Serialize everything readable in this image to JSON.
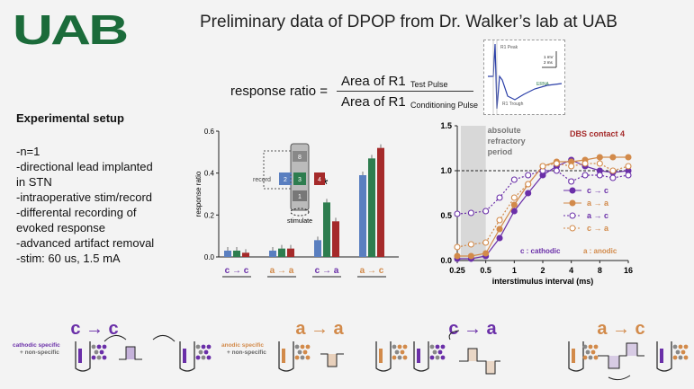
{
  "logo": {
    "text": "UAB"
  },
  "slide_title": "Preliminary data of DPOP from Dr. Walker’s lab at UAB",
  "formula": {
    "lhs": "response ratio =",
    "numerator": "Area of R1",
    "numerator_sub": "Test Pulse",
    "denominator": "Area of R1",
    "denominator_sub": "Conditioning Pulse"
  },
  "trace_inset": {
    "r1_peak": "R1 Peak",
    "r1_trough": "R1 Trough",
    "erna": "ERNA",
    "scale_amp": "1 mV",
    "scale_time": "2 ms"
  },
  "setup": {
    "title": "Experimental setup",
    "items": [
      "-n=1",
      "-directional lead implanted in STN",
      "-intraoperative stim/record",
      "-differental recording of evoked response",
      "-advanced artifact removal",
      "-stim: 60 us, 1.5 mA"
    ]
  },
  "colors": {
    "purple": "#6a2fa8",
    "green": "#2e7d4f",
    "red": "#a52a2a",
    "orange": "#d28a4a",
    "gray": "#bbbbbb"
  },
  "chart_data": [
    {
      "type": "bar",
      "ylabel": "response ratio",
      "ylim": [
        0,
        0.6
      ],
      "yticks": [
        "0.0",
        "0.2",
        "0.4",
        "0.6"
      ],
      "categories": [
        "c → c",
        "a → a",
        "c → a",
        "a → c"
      ],
      "series": [
        {
          "name": "2",
          "color": "#5a7fc0",
          "values": [
            0.03,
            0.03,
            0.08,
            0.39
          ]
        },
        {
          "name": "3",
          "color": "#2e7d4f",
          "values": [
            0.03,
            0.04,
            0.26,
            0.47
          ]
        },
        {
          "name": "4",
          "color": "#a52a2a",
          "values": [
            0.02,
            0.04,
            0.17,
            0.52
          ]
        }
      ],
      "annotations": {
        "star": "*",
        "record": "record",
        "stimulate": "stimulate",
        "contacts": [
          "8",
          "2",
          "3",
          "4",
          "1"
        ]
      }
    },
    {
      "type": "line",
      "title": "DBS contact 4",
      "xlabel": "interstimulus interval (ms)",
      "xscale": "log2",
      "xticks": [
        "0.25",
        "0.5",
        "1",
        "2",
        "4",
        "8",
        "16"
      ],
      "x": [
        0.25,
        0.35,
        0.5,
        0.7,
        1,
        1.4,
        2,
        2.8,
        4,
        5.6,
        8,
        11,
        16
      ],
      "ylim": [
        0,
        1.5
      ],
      "yticks": [
        "0.0",
        "0.5",
        "1.0",
        "1.5"
      ],
      "refractory_label": "absolute refractory period",
      "legend_position": "right",
      "series": [
        {
          "name": "c → c",
          "style": "solid-filled",
          "color": "#6a2fa8",
          "values": [
            0.02,
            0.02,
            0.05,
            0.25,
            0.55,
            0.75,
            0.95,
            1.05,
            1.12,
            1.05,
            1.0,
            0.98,
            1.0
          ]
        },
        {
          "name": "a → a",
          "style": "solid-filled",
          "color": "#d28a4a",
          "values": [
            0.05,
            0.05,
            0.08,
            0.35,
            0.62,
            0.85,
            1.05,
            1.1,
            1.1,
            1.12,
            1.15,
            1.15,
            1.15
          ]
        },
        {
          "name": "a → c",
          "style": "dotted-open",
          "color": "#6a2fa8",
          "values": [
            0.52,
            0.53,
            0.55,
            0.7,
            0.9,
            0.95,
            1.0,
            1.0,
            0.88,
            0.95,
            0.95,
            0.92,
            0.95
          ]
        },
        {
          "name": "c → a",
          "style": "dotted-open",
          "color": "#d28a4a",
          "values": [
            0.15,
            0.18,
            0.2,
            0.45,
            0.7,
            0.85,
            1.05,
            1.08,
            1.05,
            1.08,
            1.08,
            1.0,
            1.05
          ]
        }
      ],
      "footnote_c": "c : cathodic",
      "footnote_a": "a : anodic"
    }
  ],
  "bottom": {
    "panels": [
      {
        "head": "c → c",
        "label1": "cathodic specific",
        "label2": "+ non-specific"
      },
      {
        "head": "a → a",
        "label1": "anodic specific",
        "label2": "+ non-specific"
      },
      {
        "head": "c → a"
      },
      {
        "head": "a → c"
      }
    ]
  }
}
